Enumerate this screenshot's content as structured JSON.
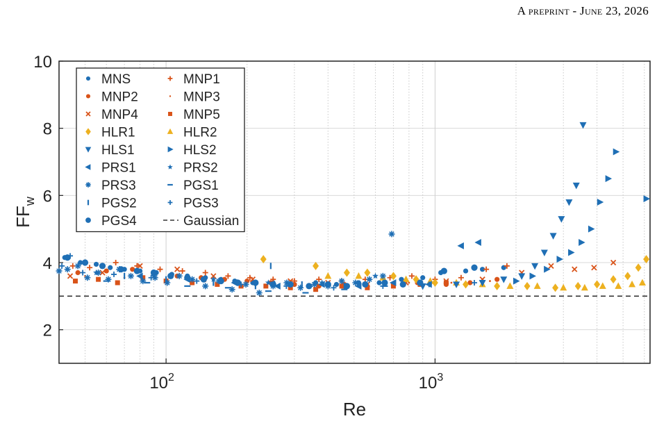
{
  "header": {
    "text": "A preprint - June 23, 2026"
  },
  "chart_data": {
    "type": "scatter",
    "xlabel": "Re",
    "ylabel_main": "FF",
    "ylabel_sub": "w",
    "x_scale": "log",
    "xlim": [
      40,
      6300
    ],
    "ylim": [
      1,
      10
    ],
    "yticks": [
      2,
      4,
      6,
      8,
      10
    ],
    "xticks": [
      {
        "value": 100,
        "base": "10",
        "exp": "2"
      },
      {
        "value": 1000,
        "base": "10",
        "exp": "3"
      }
    ],
    "grid": true,
    "gaussian_level": 3.0,
    "legend_position": "top-left",
    "colors": {
      "blue": "#1f6fb5",
      "orange": "#d95319",
      "yellow": "#edb120",
      "line": "#333333"
    },
    "series": [
      {
        "name": "MNS",
        "marker": "dot",
        "color": "#1f6fb5",
        "x": [
          42,
          48,
          55,
          62,
          70,
          80,
          92,
          105,
          120,
          140,
          160,
          180,
          210,
          250,
          300,
          360,
          430,
          520,
          620,
          750,
          900,
          1050,
          1300,
          1500,
          1800
        ],
        "y": [
          4.15,
          4.0,
          3.95,
          3.85,
          3.8,
          3.75,
          3.7,
          3.65,
          3.6,
          3.55,
          3.5,
          3.45,
          3.4,
          3.4,
          3.35,
          3.4,
          3.35,
          3.4,
          3.4,
          3.5,
          3.55,
          3.7,
          3.75,
          3.8,
          3.85
        ]
      },
      {
        "name": "MNP1",
        "marker": "plus",
        "color": "#d95319",
        "x": [
          45,
          52,
          65,
          78,
          95,
          115,
          140,
          170,
          205,
          250,
          300,
          370,
          450,
          550,
          680,
          820,
          1000,
          1250,
          1550,
          1850
        ],
        "y": [
          3.9,
          3.85,
          4.0,
          3.9,
          3.8,
          3.75,
          3.7,
          3.6,
          3.55,
          3.5,
          3.45,
          3.5,
          3.45,
          3.5,
          3.55,
          3.6,
          3.5,
          3.55,
          3.8,
          3.9
        ]
      },
      {
        "name": "MNP2",
        "marker": "dot",
        "color": "#d95319",
        "x": [
          47,
          60,
          75,
          90,
          110,
          135,
          165,
          200,
          245,
          300,
          370,
          460,
          560,
          700,
          860,
          1100,
          1350,
          1700
        ],
        "y": [
          3.7,
          3.75,
          3.8,
          3.7,
          3.6,
          3.55,
          3.5,
          3.45,
          3.4,
          3.35,
          3.3,
          3.35,
          3.3,
          3.35,
          3.4,
          3.35,
          3.4,
          3.5
        ]
      },
      {
        "name": "MNP3",
        "marker": "point",
        "color": "#d95319",
        "x": [
          50,
          70,
          100,
          140,
          200,
          280,
          400,
          560,
          800,
          1150,
          1600
        ],
        "y": [
          3.6,
          3.55,
          3.5,
          3.45,
          3.4,
          3.4,
          3.35,
          3.35,
          3.4,
          3.4,
          3.45
        ]
      },
      {
        "name": "MNP4",
        "marker": "x",
        "color": "#d95319",
        "x": [
          44,
          58,
          80,
          110,
          150,
          210,
          290,
          400,
          560,
          780,
          1100,
          1500,
          2100,
          2700,
          3300,
          3900,
          4600
        ],
        "y": [
          3.6,
          3.7,
          3.9,
          3.8,
          3.6,
          3.5,
          3.45,
          3.4,
          3.35,
          3.4,
          3.45,
          3.5,
          3.7,
          3.9,
          3.8,
          3.85,
          4.0
        ]
      },
      {
        "name": "MNP5",
        "marker": "square",
        "color": "#d95319",
        "x": [
          46,
          56,
          66,
          82,
          100,
          125,
          155,
          190,
          235,
          290,
          360,
          450,
          560,
          700,
          880,
          1100
        ],
        "y": [
          3.45,
          3.5,
          3.4,
          3.55,
          3.45,
          3.4,
          3.35,
          3.3,
          3.3,
          3.25,
          3.2,
          3.3,
          3.25,
          3.3,
          3.35,
          3.4
        ]
      },
      {
        "name": "HLR1",
        "marker": "diamond",
        "color": "#edb120",
        "x": [
          230,
          360,
          470,
          560,
          700,
          850,
          1000,
          1300,
          1700,
          2200,
          2800,
          3400,
          4000,
          4600,
          5200,
          5700,
          6100
        ],
        "y": [
          4.1,
          3.9,
          3.7,
          3.7,
          3.6,
          3.5,
          3.4,
          3.35,
          3.3,
          3.3,
          3.25,
          3.3,
          3.35,
          3.5,
          3.6,
          3.85,
          4.1
        ]
      },
      {
        "name": "HLR2",
        "marker": "triangle-up",
        "color": "#edb120",
        "x": [
          400,
          520,
          640,
          780,
          960,
          1200,
          1500,
          1900,
          2400,
          3000,
          3600,
          4200,
          4800,
          5400,
          5900
        ],
        "y": [
          3.6,
          3.6,
          3.55,
          3.5,
          3.45,
          3.4,
          3.35,
          3.3,
          3.3,
          3.25,
          3.25,
          3.3,
          3.3,
          3.35,
          3.4
        ]
      },
      {
        "name": "HLS1",
        "marker": "triangle-down",
        "color": "#1f6fb5",
        "x": [
          900,
          1200,
          1500,
          1800,
          2100,
          2350,
          2550,
          2750,
          2950,
          3150,
          3350,
          3550
        ],
        "y": [
          3.3,
          3.35,
          3.4,
          3.5,
          3.6,
          3.9,
          4.3,
          4.8,
          5.3,
          5.8,
          6.3,
          8.1
        ]
      },
      {
        "name": "HLS2",
        "marker": "triangle-right",
        "color": "#1f6fb5",
        "x": [
          2000,
          2300,
          2600,
          2900,
          3200,
          3500,
          3800,
          4100,
          4400,
          4700,
          6100
        ],
        "y": [
          3.45,
          3.6,
          3.8,
          4.1,
          4.3,
          4.6,
          5.0,
          5.8,
          6.5,
          7.3,
          5.9
        ]
      },
      {
        "name": "PRS1",
        "marker": "triangle-left",
        "color": "#1f6fb5",
        "x": [
          80,
          120,
          180,
          260,
          380,
          520,
          700,
          950,
          1250,
          1450
        ],
        "y": [
          3.6,
          3.5,
          3.4,
          3.3,
          3.35,
          3.3,
          3.4,
          3.35,
          4.5,
          4.6
        ]
      },
      {
        "name": "PRS2",
        "marker": "star",
        "color": "#1f6fb5",
        "x": [
          55,
          90,
          150,
          240,
          380,
          600
        ],
        "y": [
          3.7,
          3.6,
          3.5,
          3.4,
          3.4,
          3.6
        ]
      },
      {
        "name": "PRS3",
        "marker": "asterisk",
        "color": "#1f6fb5",
        "x": [
          40,
          43,
          47,
          51,
          56,
          61,
          67,
          74,
          82,
          91,
          101,
          112,
          125,
          140,
          157,
          176,
          198,
          222,
          250,
          281,
          316,
          356,
          400,
          450,
          506,
          570,
          640,
          690
        ],
        "y": [
          3.75,
          3.8,
          3.9,
          3.55,
          3.7,
          3.5,
          3.8,
          3.6,
          3.45,
          3.55,
          3.4,
          3.6,
          3.5,
          3.3,
          3.45,
          3.2,
          3.35,
          3.1,
          3.3,
          3.4,
          3.25,
          3.35,
          3.3,
          3.45,
          3.4,
          3.5,
          3.6,
          4.85
        ]
      },
      {
        "name": "PGS1",
        "marker": "hline",
        "color": "#1f6fb5",
        "x": [
          60,
          85,
          120,
          170,
          240,
          330,
          460,
          650
        ],
        "y": [
          3.45,
          3.4,
          3.3,
          3.25,
          3.15,
          3.1,
          3.2,
          3.3
        ]
      },
      {
        "name": "PGS2",
        "marker": "vline",
        "color": "#1f6fb5",
        "x": [
          70,
          100,
          150,
          215,
          245,
          320,
          460
        ],
        "y": [
          3.6,
          3.5,
          3.4,
          3.3,
          3.9,
          3.35,
          3.3
        ]
      },
      {
        "name": "PGS3",
        "marker": "plus",
        "color": "#1f6fb5",
        "x": [
          41,
          44,
          49,
          64,
          88,
          130,
          190,
          280,
          420,
          640,
          950,
          1400
        ],
        "y": [
          3.9,
          4.2,
          3.7,
          3.65,
          3.55,
          3.45,
          3.35,
          3.3,
          3.25,
          3.3,
          3.35,
          3.4
        ]
      },
      {
        "name": "PGS4",
        "marker": "dot-large",
        "color": "#1f6fb5",
        "x": [
          43,
          50,
          58,
          68,
          78,
          90,
          104,
          120,
          138,
          160,
          185,
          215,
          250,
          290,
          340,
          400,
          470,
          550,
          650,
          760,
          880,
          1080,
          1400
        ],
        "y": [
          4.15,
          4.0,
          3.9,
          3.8,
          3.75,
          3.7,
          3.6,
          3.55,
          3.5,
          3.45,
          3.4,
          3.4,
          3.35,
          3.35,
          3.3,
          3.35,
          3.3,
          3.35,
          3.4,
          3.35,
          3.4,
          3.75,
          3.85
        ]
      },
      {
        "name": "Gaussian",
        "marker": "dashed-line",
        "color": "#333333"
      }
    ]
  }
}
